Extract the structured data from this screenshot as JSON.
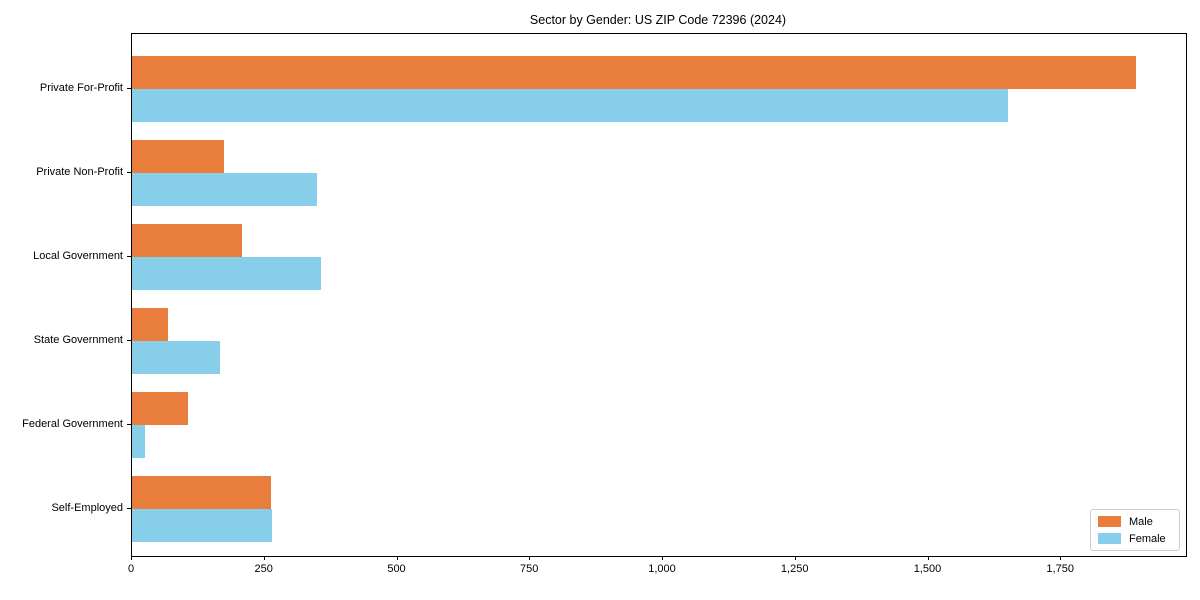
{
  "title": "Sector by Gender: US ZIP Code 72396 (2024)",
  "colors": {
    "male": "#e87d3c",
    "female": "#87ceeb",
    "axis": "#000000",
    "background": "#ffffff",
    "legend_border": "#cccccc"
  },
  "legend": {
    "position": "lower right",
    "items": [
      {
        "label": "Male",
        "color": "#e87d3c"
      },
      {
        "label": "Female",
        "color": "#87ceeb"
      }
    ]
  },
  "chart_data": {
    "type": "bar",
    "orientation": "horizontal",
    "title": "Sector by Gender: US ZIP Code 72396 (2024)",
    "categories": [
      "Private For-Profit",
      "Private Non-Profit",
      "Local Government",
      "State Government",
      "Federal Government",
      "Self-Employed"
    ],
    "series": [
      {
        "name": "Male",
        "color": "#e87d3c",
        "values": [
          1890,
          173,
          207,
          68,
          106,
          262
        ]
      },
      {
        "name": "Female",
        "color": "#87ceeb",
        "values": [
          1650,
          348,
          355,
          166,
          25,
          264
        ]
      }
    ],
    "xlabel": "",
    "ylabel": "",
    "xlim": [
      0,
      1985
    ],
    "xticks": [
      0,
      250,
      500,
      750,
      1000,
      1250,
      1500,
      1750
    ],
    "xtick_labels": [
      "0",
      "250",
      "500",
      "750",
      "1,000",
      "1,250",
      "1,500",
      "1,750"
    ],
    "grid": false,
    "legend_position": "lower right"
  }
}
